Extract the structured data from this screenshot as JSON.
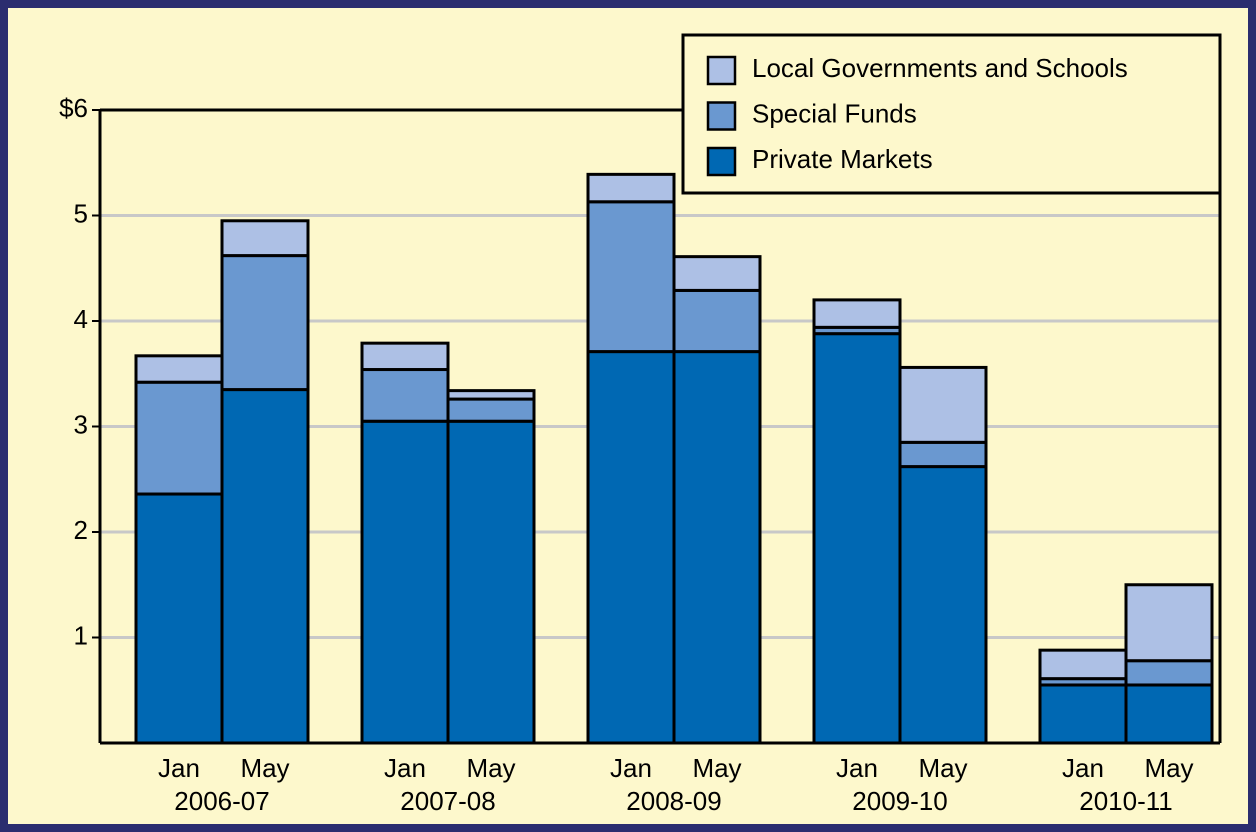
{
  "chart_data": {
    "type": "stacked_bar",
    "categories": [
      "Jan",
      "May",
      "Jan",
      "May",
      "Jan",
      "May",
      "Jan",
      "May",
      "Jan",
      "May"
    ],
    "groups": [
      "2006-07",
      "2007-08",
      "2008-09",
      "2009-10",
      "2010-11"
    ],
    "series": [
      {
        "name": "Private Markets",
        "color": "#0068b3",
        "values": [
          2.36,
          3.35,
          3.05,
          3.05,
          3.71,
          3.71,
          3.88,
          2.62,
          0.55,
          0.55
        ]
      },
      {
        "name": "Special Funds",
        "color": "#6a98d0",
        "values": [
          1.06,
          1.27,
          0.49,
          0.21,
          1.42,
          0.58,
          0.06,
          0.23,
          0.06,
          0.23
        ]
      },
      {
        "name": "Local Governments and Schools",
        "color": "#adc0e5",
        "values": [
          0.25,
          0.33,
          0.25,
          0.08,
          0.26,
          0.32,
          0.26,
          0.71,
          0.27,
          0.72
        ]
      }
    ],
    "ylim": [
      0,
      6
    ],
    "yticks": [
      1,
      2,
      3,
      4,
      5,
      {
        "value": 6,
        "label": "$6"
      }
    ],
    "grid": true,
    "legend": "top-right"
  }
}
